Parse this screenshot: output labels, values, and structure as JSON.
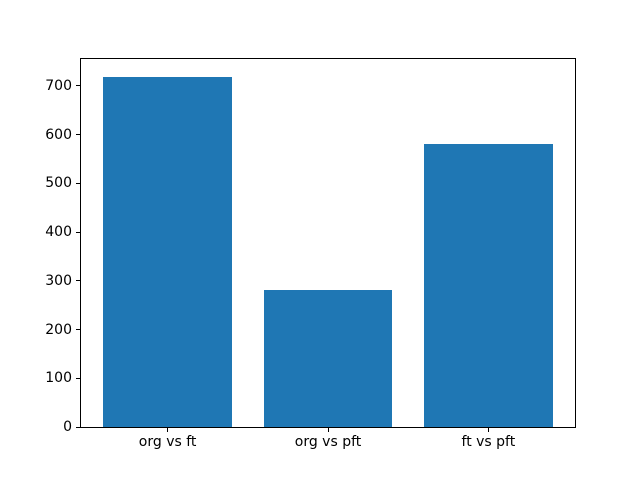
{
  "figure": {
    "background": "#ffffff"
  },
  "chart_data": {
    "type": "bar",
    "categories": [
      "org vs ft",
      "org vs pft",
      "ft vs pft"
    ],
    "values": [
      719,
      282,
      580
    ],
    "title": "",
    "xlabel": "",
    "ylabel": "",
    "ylim": [
      0,
      755
    ],
    "yticks": [
      0,
      100,
      200,
      300,
      400,
      500,
      600,
      700
    ],
    "xlim": [
      -0.54,
      2.54
    ],
    "bar_width": 0.8,
    "bar_color": "#1f77b4",
    "axis_color": "#000000",
    "tick_label_color": "#000000",
    "grid": false,
    "legend": false
  }
}
